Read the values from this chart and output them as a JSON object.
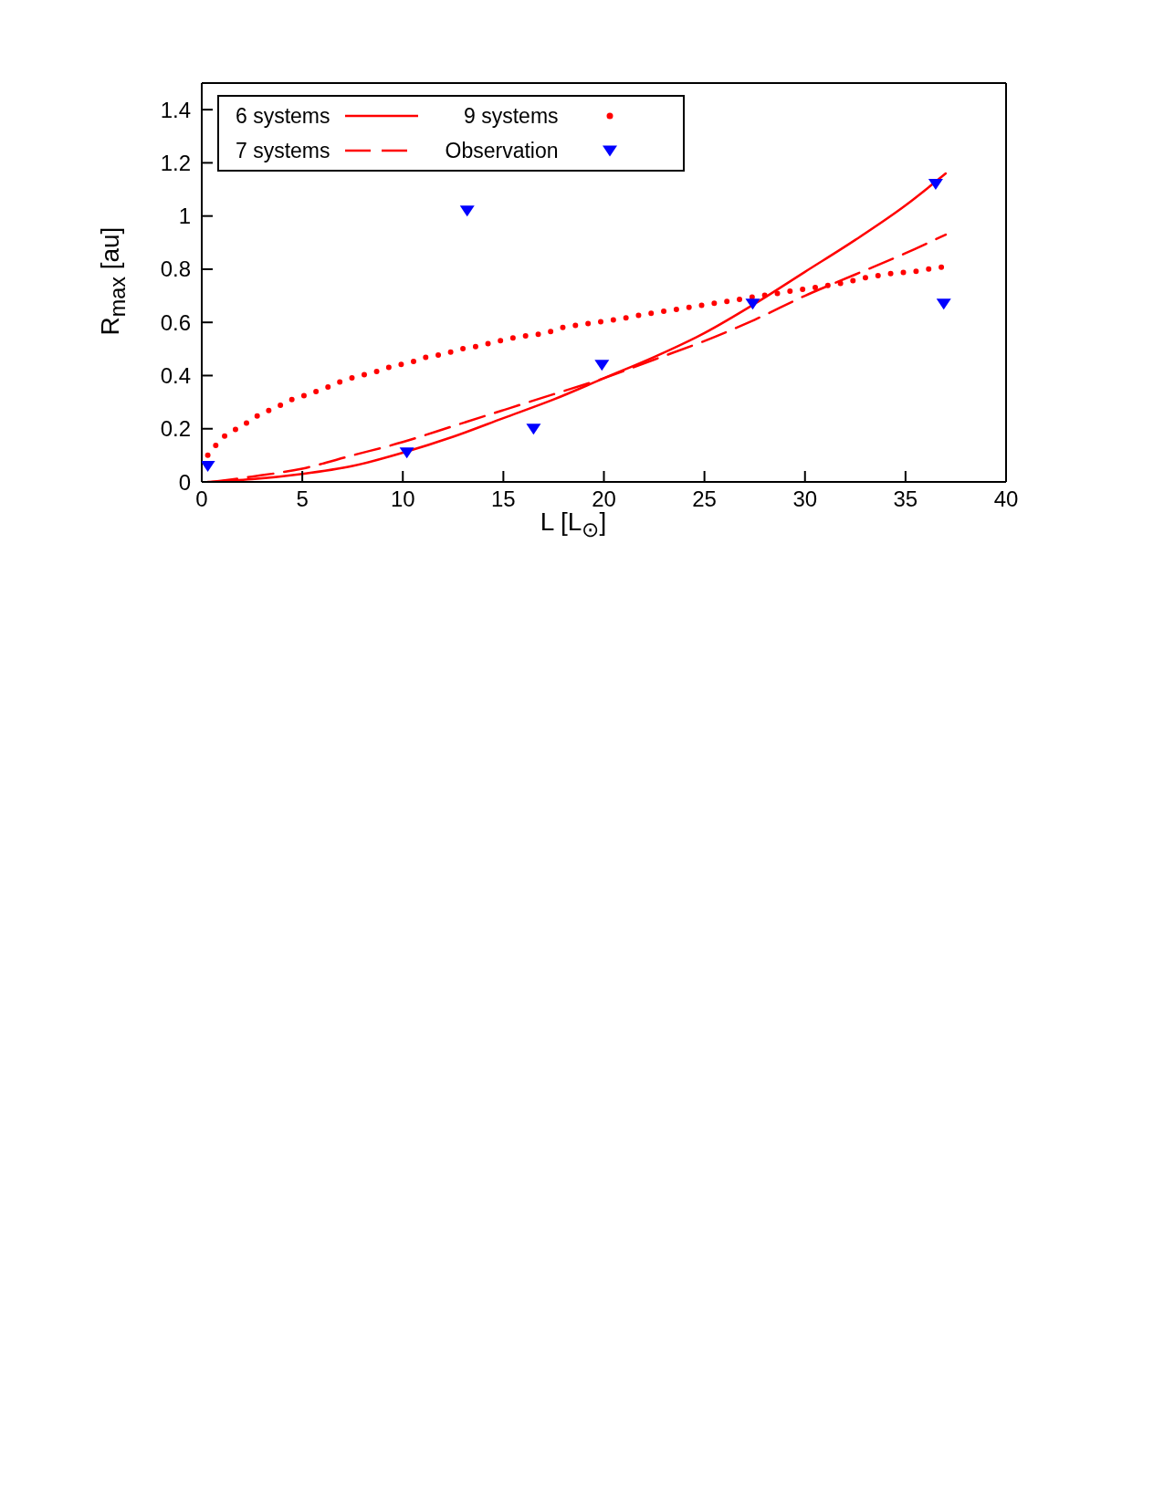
{
  "chart_data": {
    "type": "line",
    "xlabel": "L [L$_{⊙}$]",
    "ylabel": "R$_{max}$ [au]",
    "xlim": [
      0,
      40
    ],
    "xticks": [
      0,
      5,
      10,
      15,
      20,
      25,
      30,
      35,
      40
    ],
    "ylim": [
      0,
      1.5
    ],
    "yticks": [
      0,
      0.2,
      0.4,
      0.6,
      0.8,
      1,
      1.2,
      1.4
    ],
    "legend": "top left",
    "grid": false,
    "series": [
      {
        "name": "6 systems",
        "color": "#ff0000",
        "line_style": "solid",
        "x": [
          0.3,
          2.5,
          5,
          7.5,
          10,
          12.5,
          15,
          17.5,
          20,
          22.5,
          25,
          27.5,
          30,
          32.5,
          35,
          37
        ],
        "values": [
          0,
          0.01,
          0.03,
          0.06,
          0.11,
          0.17,
          0.24,
          0.31,
          0.39,
          0.47,
          0.56,
          0.67,
          0.79,
          0.91,
          1.04,
          1.16
        ]
      },
      {
        "name": "7 systems",
        "color": "#ff0000",
        "line_style": "dashed",
        "x": [
          0.5,
          2.5,
          5,
          7.5,
          10,
          12.5,
          15,
          17.5,
          20,
          22.5,
          25,
          27.5,
          30,
          32.5,
          35,
          37
        ],
        "values": [
          0,
          0.02,
          0.05,
          0.1,
          0.15,
          0.21,
          0.27,
          0.33,
          0.39,
          0.46,
          0.53,
          0.61,
          0.7,
          0.78,
          0.86,
          0.93
        ]
      },
      {
        "name": "9 systems",
        "color": "#ff0000",
        "line_style": "dotted",
        "x": [
          0.3,
          1.1,
          2,
          2.8,
          3.7,
          4.5,
          5.3,
          6.2,
          7,
          7.9,
          8.7,
          9.5,
          10.4,
          11.2,
          12,
          12.9,
          13.7,
          14.5,
          15.4,
          16.2,
          17.1,
          17.9,
          18.7,
          19.6,
          20.5,
          21.3,
          22,
          22.8,
          23.7,
          24.5,
          25.3,
          26.2,
          27,
          27.8,
          28.7,
          29.5,
          30.4,
          31.2,
          32,
          32.8,
          33.6,
          34.4,
          35.3,
          36.1,
          37
        ],
        "values": [
          0.1,
          0.17,
          0.21,
          0.25,
          0.28,
          0.31,
          0.33,
          0.355,
          0.38,
          0.4,
          0.415,
          0.435,
          0.45,
          0.47,
          0.48,
          0.5,
          0.51,
          0.525,
          0.54,
          0.55,
          0.56,
          0.58,
          0.59,
          0.6,
          0.61,
          0.62,
          0.63,
          0.64,
          0.65,
          0.66,
          0.67,
          0.68,
          0.69,
          0.7,
          0.71,
          0.72,
          0.73,
          0.74,
          0.75,
          0.765,
          0.775,
          0.785,
          0.79,
          0.8,
          0.81
        ]
      },
      {
        "name": "Observation",
        "type": "scatter",
        "color": "#0000ff",
        "marker": "triangle",
        "x": [
          0.3,
          10.2,
          13.2,
          16.5,
          19.9,
          27.4,
          36.5,
          36.9
        ],
        "values": [
          0.06,
          0.11,
          1.02,
          0.2,
          0.44,
          0.67,
          1.12,
          0.67
        ]
      }
    ]
  }
}
